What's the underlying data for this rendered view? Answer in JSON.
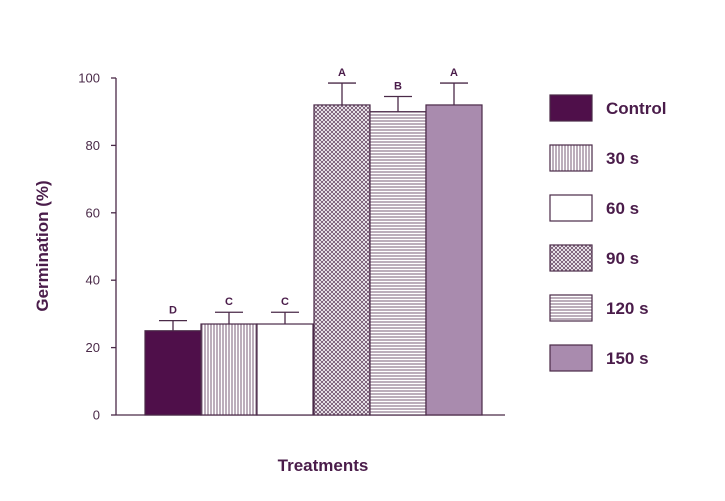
{
  "chart_data": {
    "type": "bar",
    "xlabel": "Treatments",
    "ylabel": "Germination (%)",
    "ylim": [
      0,
      100
    ],
    "yticks": [
      0,
      20,
      40,
      60,
      80,
      100
    ],
    "grid": false,
    "legend_position": "right",
    "categories": [
      "Control",
      "30 s",
      "60 s",
      "90 s",
      "120 s",
      "150 s"
    ],
    "values": [
      25,
      27,
      27,
      92,
      90,
      92
    ],
    "error_plus": [
      3,
      3.5,
      3.5,
      6.5,
      4.5,
      6.5
    ],
    "significance": [
      "D",
      "C",
      "C",
      "A",
      "B",
      "A"
    ],
    "fills": [
      {
        "pattern": "solid",
        "color": "#4f0f4a"
      },
      {
        "pattern": "vertical-lines",
        "color": "#6a4a68"
      },
      {
        "pattern": "none",
        "color": "#ffffff"
      },
      {
        "pattern": "crosshatch",
        "color": "#6a4a68"
      },
      {
        "pattern": "horizontal-lines",
        "color": "#6a4a68"
      },
      {
        "pattern": "solid",
        "color": "#a98bae"
      }
    ]
  }
}
